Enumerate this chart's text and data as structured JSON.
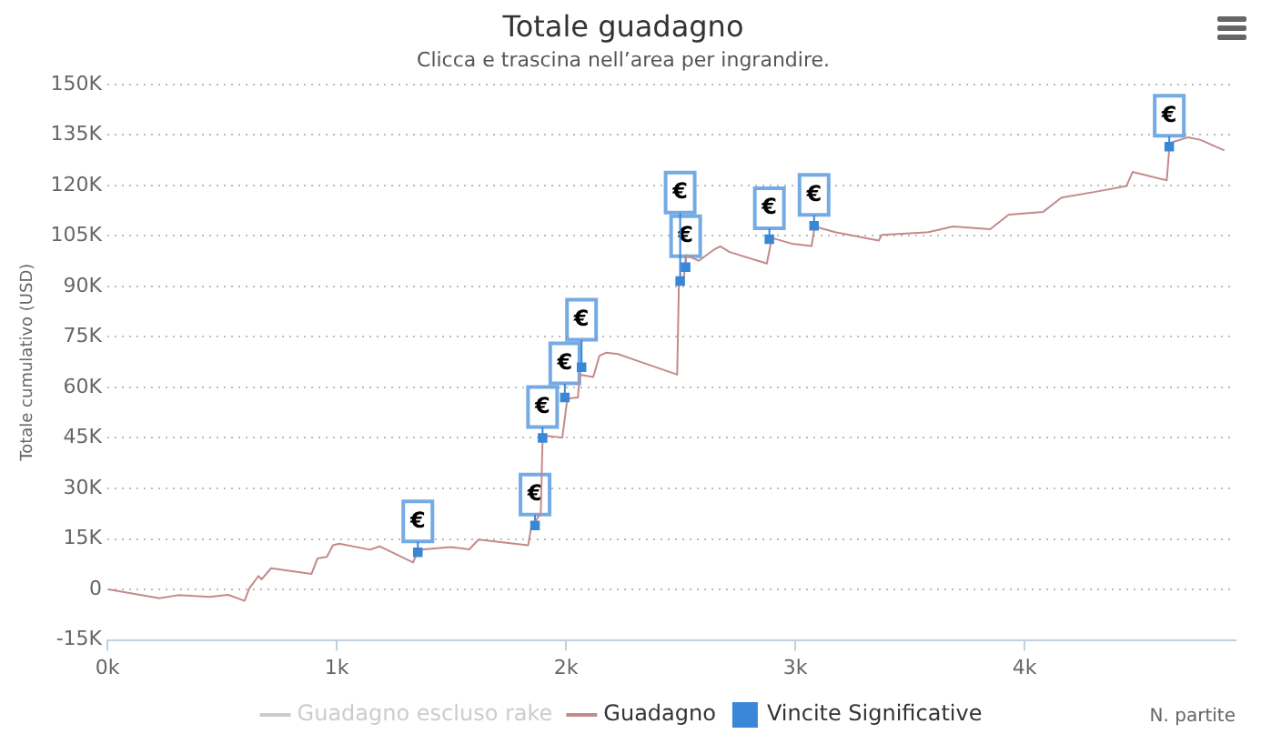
{
  "chart_data": {
    "type": "line",
    "title": "Totale guadagno",
    "subtitle": "Clicca e trascina nell’area per ingrandire.",
    "xlabel": "N. partite",
    "ylabel": "Totale cumulativo (USD)",
    "xlim": [
      0,
      4920
    ],
    "xticks": [
      {
        "value": 0,
        "label": "0k"
      },
      {
        "value": 1000,
        "label": "1k"
      },
      {
        "value": 2000,
        "label": "2k"
      },
      {
        "value": 3000,
        "label": "3k"
      },
      {
        "value": 4000,
        "label": "4k"
      }
    ],
    "ylim": [
      -15000,
      150000
    ],
    "yticks": [
      {
        "value": -15000,
        "label": "-15K"
      },
      0,
      {
        "value": 15000,
        "label": "15K"
      },
      {
        "value": 30000,
        "label": "30K"
      },
      {
        "value": 45000,
        "label": "45K"
      },
      {
        "value": 60000,
        "label": "60K"
      },
      {
        "value": 75000,
        "label": "75K"
      },
      {
        "value": 90000,
        "label": "90K"
      },
      {
        "value": 105000,
        "label": "105K"
      },
      {
        "value": 120000,
        "label": "120K"
      },
      {
        "value": 135000,
        "label": "135K"
      },
      {
        "value": 150000,
        "label": "150K"
      }
    ],
    "grid": "y",
    "legend": "bottom",
    "marker": "none",
    "line_style": "solid",
    "series": [
      {
        "name": "Guadagno escluso rake",
        "color": "#cccccc"
      },
      {
        "name": "Guadagno",
        "color": "#c48a8a",
        "x": [
          5,
          227,
          308,
          446,
          527,
          598,
          619,
          659,
          673,
          714,
          890,
          916,
          957,
          984,
          1011,
          1146,
          1187,
          1333,
          1357,
          1497,
          1578,
          1619,
          1835,
          1849,
          1890,
          1898,
          1916,
          1984,
          2006,
          2052,
          2060,
          2119,
          2146,
          2174,
          2227,
          2282,
          2485,
          2493,
          2511,
          2525,
          2579,
          2647,
          2673,
          2714,
          2876,
          2898,
          2985,
          3071,
          3085,
          3174,
          3364,
          3377,
          3580,
          3688,
          3850,
          3931,
          4080,
          4161,
          4309,
          4444,
          4471,
          4620,
          4633,
          4714,
          4768,
          4871
        ],
        "values": [
          0,
          -2600,
          -1700,
          -2200,
          -1600,
          -3400,
          300,
          4000,
          3000,
          6300,
          4600,
          9200,
          9700,
          13100,
          13600,
          11800,
          12800,
          8000,
          11800,
          12600,
          11900,
          14800,
          13100,
          18600,
          22500,
          44700,
          45600,
          45100,
          56700,
          57000,
          63800,
          63100,
          69400,
          70300,
          69900,
          68600,
          63800,
          92500,
          90800,
          99300,
          97600,
          101000,
          101900,
          100200,
          96800,
          104400,
          102700,
          102000,
          107800,
          106100,
          103600,
          105300,
          106100,
          107800,
          107000,
          111300,
          112100,
          116400,
          118100,
          119800,
          124000,
          121500,
          132600,
          134300,
          133500,
          130400
        ]
      },
      {
        "name": "Vincite Significative",
        "type": "scatter",
        "color": "#3a87d8",
        "marker": "square",
        "x": [
          1354,
          1865,
          1898,
          1995,
          2068,
          2522,
          2498,
          2887,
          3082,
          4631
        ],
        "values": [
          11000,
          19000,
          45000,
          57000,
          66000,
          95700,
          91600,
          104000,
          108000,
          131500
        ]
      }
    ],
    "annotations": [
      {
        "text": "€",
        "x": 1354,
        "y": 11000
      },
      {
        "text": "€",
        "x": 1865,
        "y": 19000
      },
      {
        "text": "€",
        "x": 1898,
        "y": 45000
      },
      {
        "text": "€",
        "x": 1995,
        "y": 57000
      },
      {
        "text": "€",
        "x": 2068,
        "y": 66000
      },
      {
        "text": "€",
        "x": 2522,
        "y": 95700
      },
      {
        "text": "€",
        "x": 2498,
        "y": 91600
      },
      {
        "text": "€",
        "x": 2887,
        "y": 104000
      },
      {
        "text": "€",
        "x": 3082,
        "y": 108000
      },
      {
        "text": "€",
        "x": 4631,
        "y": 131500
      }
    ]
  }
}
